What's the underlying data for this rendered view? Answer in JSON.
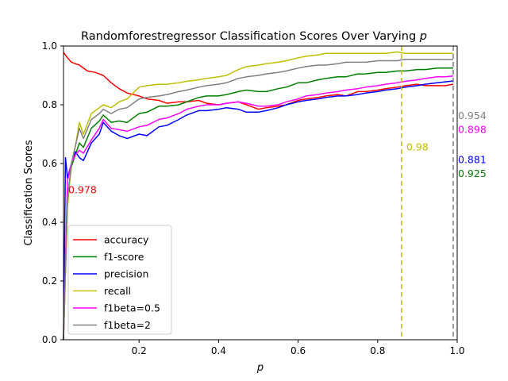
{
  "chart_data": {
    "type": "line",
    "title": "Randomforestregressor Classification Scores Over Varying",
    "title_var": "p",
    "xlabel": "p",
    "ylabel": "Classification Scores",
    "xlim": [
      0.01,
      1.0
    ],
    "ylim": [
      0.0,
      1.0
    ],
    "xticks": [
      0.2,
      0.4,
      0.6,
      0.8,
      1.0
    ],
    "xtick_labels": [
      "0.2",
      "0.4",
      "0.6",
      "0.8",
      "1.0"
    ],
    "yticks": [
      0.0,
      0.2,
      0.4,
      0.6,
      0.8,
      1.0
    ],
    "ytick_labels": [
      "0.0",
      "0.2",
      "0.4",
      "0.6",
      "0.8",
      "1.0"
    ],
    "grid": false,
    "legend_placement": "lower-left",
    "series": [
      {
        "name": "accuracy",
        "color": "#ff0000",
        "x": [
          0.01,
          0.02,
          0.03,
          0.05,
          0.07,
          0.09,
          0.11,
          0.13,
          0.15,
          0.17,
          0.2,
          0.22,
          0.25,
          0.27,
          0.3,
          0.32,
          0.35,
          0.37,
          0.4,
          0.42,
          0.45,
          0.47,
          0.5,
          0.52,
          0.55,
          0.57,
          0.6,
          0.62,
          0.65,
          0.67,
          0.7,
          0.72,
          0.75,
          0.77,
          0.8,
          0.82,
          0.85,
          0.87,
          0.9,
          0.92,
          0.95,
          0.97,
          0.99
        ],
        "y": [
          0.978,
          0.96,
          0.945,
          0.935,
          0.915,
          0.91,
          0.9,
          0.875,
          0.855,
          0.84,
          0.83,
          0.82,
          0.815,
          0.805,
          0.81,
          0.81,
          0.815,
          0.805,
          0.8,
          0.805,
          0.81,
          0.8,
          0.785,
          0.79,
          0.795,
          0.8,
          0.815,
          0.82,
          0.825,
          0.83,
          0.835,
          0.83,
          0.845,
          0.845,
          0.85,
          0.855,
          0.86,
          0.865,
          0.87,
          0.865,
          0.865,
          0.865,
          0.87
        ]
      },
      {
        "name": "f1-score",
        "color": "#008000",
        "x": [
          0.01,
          0.02,
          0.03,
          0.04,
          0.05,
          0.06,
          0.08,
          0.1,
          0.11,
          0.13,
          0.15,
          0.17,
          0.2,
          0.22,
          0.25,
          0.27,
          0.3,
          0.32,
          0.35,
          0.37,
          0.4,
          0.42,
          0.45,
          0.47,
          0.5,
          0.52,
          0.55,
          0.57,
          0.6,
          0.62,
          0.65,
          0.67,
          0.7,
          0.72,
          0.75,
          0.77,
          0.8,
          0.82,
          0.85,
          0.87,
          0.9,
          0.92,
          0.95,
          0.97,
          0.99
        ],
        "y": [
          0.0,
          0.48,
          0.59,
          0.63,
          0.67,
          0.655,
          0.72,
          0.745,
          0.765,
          0.74,
          0.745,
          0.74,
          0.77,
          0.775,
          0.795,
          0.795,
          0.8,
          0.81,
          0.825,
          0.83,
          0.83,
          0.835,
          0.845,
          0.85,
          0.845,
          0.845,
          0.855,
          0.86,
          0.875,
          0.875,
          0.885,
          0.89,
          0.895,
          0.895,
          0.905,
          0.905,
          0.91,
          0.91,
          0.915,
          0.915,
          0.92,
          0.92,
          0.925,
          0.925,
          0.925
        ]
      },
      {
        "name": "precision",
        "color": "#0000ff",
        "x": [
          0.01,
          0.015,
          0.02,
          0.03,
          0.04,
          0.05,
          0.06,
          0.08,
          0.1,
          0.11,
          0.13,
          0.15,
          0.17,
          0.2,
          0.22,
          0.25,
          0.27,
          0.3,
          0.32,
          0.35,
          0.37,
          0.4,
          0.42,
          0.45,
          0.47,
          0.5,
          0.52,
          0.55,
          0.57,
          0.6,
          0.62,
          0.65,
          0.67,
          0.7,
          0.72,
          0.75,
          0.77,
          0.8,
          0.82,
          0.85,
          0.87,
          0.9,
          0.92,
          0.95,
          0.97,
          0.99
        ],
        "y": [
          0.0,
          0.62,
          0.55,
          0.6,
          0.64,
          0.62,
          0.61,
          0.67,
          0.7,
          0.74,
          0.71,
          0.695,
          0.685,
          0.7,
          0.695,
          0.725,
          0.73,
          0.75,
          0.765,
          0.78,
          0.78,
          0.785,
          0.79,
          0.785,
          0.775,
          0.775,
          0.78,
          0.79,
          0.8,
          0.81,
          0.815,
          0.82,
          0.825,
          0.83,
          0.83,
          0.835,
          0.84,
          0.845,
          0.85,
          0.855,
          0.86,
          0.865,
          0.87,
          0.875,
          0.878,
          0.881
        ]
      },
      {
        "name": "recall",
        "color": "#bfbf00",
        "x": [
          0.01,
          0.02,
          0.03,
          0.04,
          0.05,
          0.06,
          0.08,
          0.1,
          0.11,
          0.13,
          0.15,
          0.17,
          0.2,
          0.22,
          0.25,
          0.27,
          0.3,
          0.32,
          0.35,
          0.37,
          0.4,
          0.42,
          0.45,
          0.47,
          0.5,
          0.52,
          0.55,
          0.57,
          0.6,
          0.62,
          0.65,
          0.67,
          0.7,
          0.72,
          0.75,
          0.77,
          0.8,
          0.82,
          0.85,
          0.87,
          0.9,
          0.92,
          0.95,
          0.97,
          0.99
        ],
        "y": [
          0.0,
          0.45,
          0.6,
          0.66,
          0.74,
          0.7,
          0.77,
          0.79,
          0.8,
          0.79,
          0.81,
          0.82,
          0.86,
          0.865,
          0.87,
          0.87,
          0.875,
          0.88,
          0.885,
          0.89,
          0.895,
          0.9,
          0.92,
          0.93,
          0.935,
          0.94,
          0.945,
          0.95,
          0.96,
          0.965,
          0.97,
          0.975,
          0.975,
          0.975,
          0.975,
          0.975,
          0.975,
          0.975,
          0.98,
          0.975,
          0.975,
          0.975,
          0.975,
          0.975,
          0.975
        ]
      },
      {
        "name": "f1beta=0.5",
        "color": "#ff00ff",
        "x": [
          0.01,
          0.02,
          0.03,
          0.04,
          0.05,
          0.06,
          0.08,
          0.1,
          0.11,
          0.13,
          0.15,
          0.17,
          0.2,
          0.22,
          0.25,
          0.27,
          0.3,
          0.32,
          0.35,
          0.37,
          0.4,
          0.42,
          0.45,
          0.47,
          0.5,
          0.52,
          0.55,
          0.57,
          0.6,
          0.62,
          0.65,
          0.67,
          0.7,
          0.72,
          0.75,
          0.77,
          0.8,
          0.82,
          0.85,
          0.87,
          0.9,
          0.92,
          0.95,
          0.97,
          0.99
        ],
        "y": [
          0.0,
          0.54,
          0.6,
          0.63,
          0.645,
          0.635,
          0.68,
          0.72,
          0.75,
          0.72,
          0.715,
          0.71,
          0.725,
          0.73,
          0.75,
          0.755,
          0.77,
          0.785,
          0.795,
          0.8,
          0.8,
          0.805,
          0.81,
          0.805,
          0.795,
          0.795,
          0.8,
          0.81,
          0.82,
          0.83,
          0.835,
          0.84,
          0.845,
          0.85,
          0.855,
          0.86,
          0.865,
          0.87,
          0.875,
          0.88,
          0.885,
          0.89,
          0.895,
          0.895,
          0.898
        ]
      },
      {
        "name": "f1beta=2",
        "color": "#808080",
        "x": [
          0.01,
          0.02,
          0.03,
          0.04,
          0.05,
          0.06,
          0.08,
          0.1,
          0.11,
          0.13,
          0.15,
          0.17,
          0.2,
          0.22,
          0.25,
          0.27,
          0.3,
          0.32,
          0.35,
          0.37,
          0.4,
          0.42,
          0.45,
          0.47,
          0.5,
          0.52,
          0.55,
          0.57,
          0.6,
          0.62,
          0.65,
          0.67,
          0.7,
          0.72,
          0.75,
          0.77,
          0.8,
          0.82,
          0.85,
          0.87,
          0.9,
          0.92,
          0.95,
          0.97,
          0.99
        ],
        "y": [
          0.0,
          0.48,
          0.6,
          0.66,
          0.72,
          0.685,
          0.75,
          0.77,
          0.785,
          0.77,
          0.785,
          0.79,
          0.82,
          0.825,
          0.83,
          0.835,
          0.845,
          0.85,
          0.86,
          0.865,
          0.87,
          0.875,
          0.89,
          0.895,
          0.9,
          0.905,
          0.91,
          0.915,
          0.925,
          0.93,
          0.935,
          0.935,
          0.94,
          0.945,
          0.945,
          0.945,
          0.95,
          0.95,
          0.95,
          0.955,
          0.955,
          0.955,
          0.955,
          0.954,
          0.954
        ]
      }
    ],
    "vlines": [
      {
        "x": 0.86,
        "color": "#bfbf00"
      },
      {
        "x": 0.99,
        "color": "#808080"
      }
    ],
    "annotations": [
      {
        "text": "0.978",
        "color": "#ff0000",
        "x": 0.02,
        "y": 0.51
      },
      {
        "text": "0.98",
        "color": "#bfbf00",
        "x": 0.87,
        "y": 0.655
      },
      {
        "text": "0.954",
        "color": "#808080",
        "x": 1.0,
        "y": 0.762
      },
      {
        "text": "0.898",
        "color": "#ff00ff",
        "x": 1.0,
        "y": 0.715
      },
      {
        "text": "0.881",
        "color": "#0000ff",
        "x": 1.0,
        "y": 0.612
      },
      {
        "text": "0.925",
        "color": "#008000",
        "x": 1.0,
        "y": 0.565
      }
    ]
  }
}
